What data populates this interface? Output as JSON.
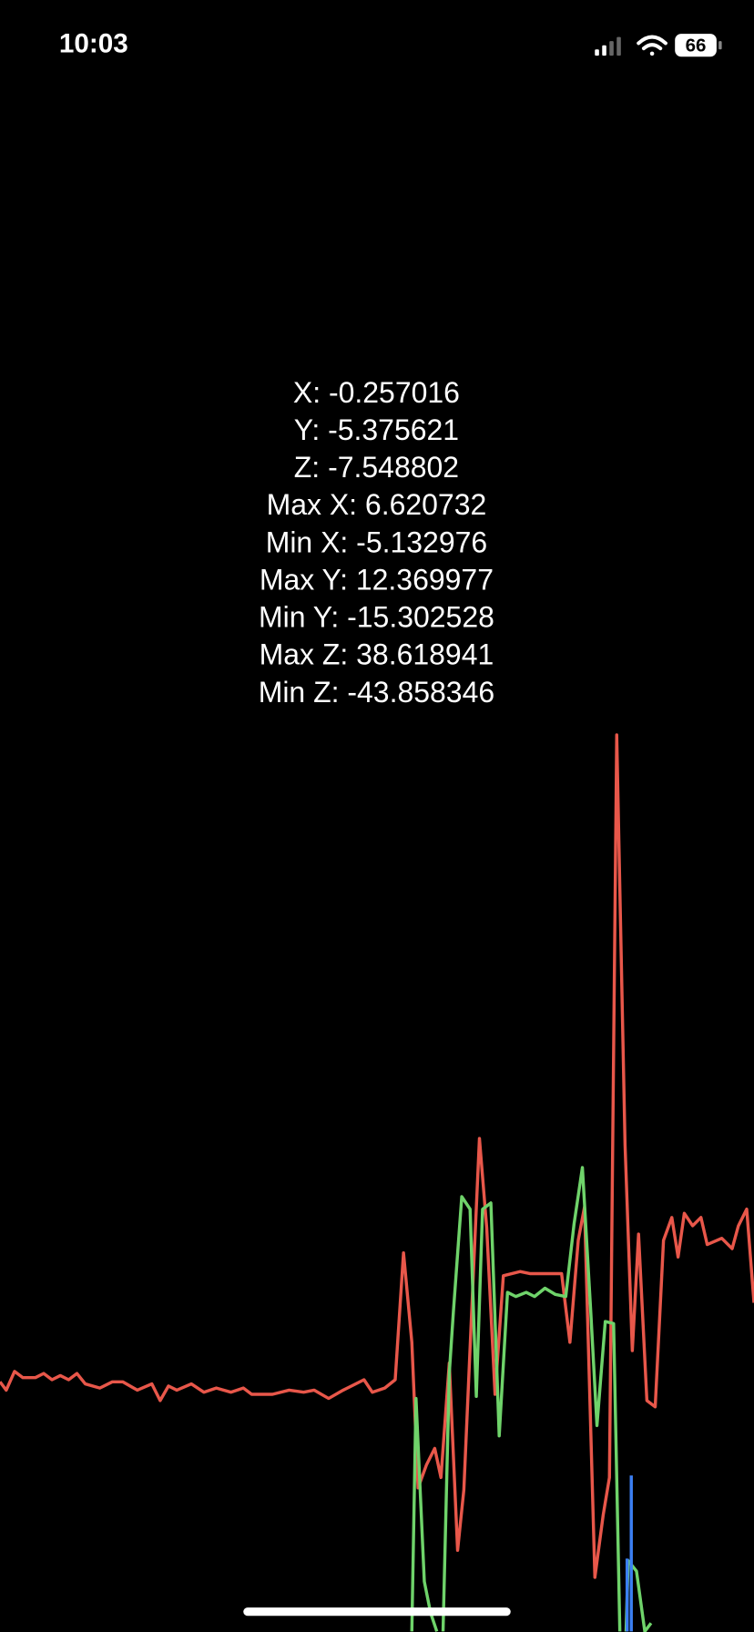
{
  "status_bar": {
    "time": "10:03",
    "battery": "66"
  },
  "readout": {
    "lines": [
      "X: -0.257016",
      "Y: -5.375621",
      "Z: -7.548802",
      "Max X: 6.620732",
      "Min X: -5.132976",
      "Max Y: 12.369977",
      "Min Y: -15.302528",
      "Max Z: 38.618941",
      "Min Z: -43.858346"
    ]
  }
}
